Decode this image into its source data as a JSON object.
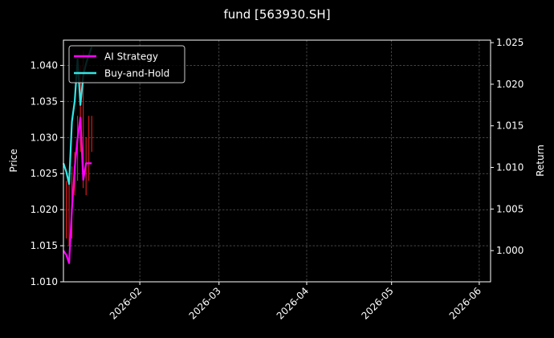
{
  "chart_data": {
    "type": "line",
    "title": "fund [563930.SH]",
    "ylabel_left": "Price",
    "ylabel_right": "Return",
    "ylim_left": [
      1.01,
      1.0435
    ],
    "ylim_right": [
      0.99625,
      1.0253
    ],
    "xlim": [
      "2026-01-05",
      "2026-06-05"
    ],
    "x_ticks": [
      "2026-02",
      "2026-03",
      "2026-04",
      "2026-05",
      "2026-06"
    ],
    "x_tick_dates": [
      "2026-02-01",
      "2026-03-01",
      "2026-04-01",
      "2026-05-01",
      "2026-06-01"
    ],
    "y_ticks_left": [
      "1.010",
      "1.015",
      "1.020",
      "1.025",
      "1.030",
      "1.035",
      "1.040"
    ],
    "y_ticks_right": [
      "1.000",
      "1.005",
      "1.010",
      "1.015",
      "1.020",
      "1.025"
    ],
    "grid": true,
    "legend_position": "top-left",
    "series": [
      {
        "name": "AI Strategy",
        "axis": "right",
        "color": "#ff00ff",
        "x": [
          "2026-01-05",
          "2026-01-06",
          "2026-01-07",
          "2026-01-08",
          "2026-01-09",
          "2026-01-10",
          "2026-01-11",
          "2026-01-12",
          "2026-01-13",
          "2026-01-14",
          "2026-01-15"
        ],
        "y": [
          1.0,
          0.9995,
          0.9985,
          1.005,
          1.01,
          1.0135,
          1.016,
          1.0085,
          1.0105,
          1.0105,
          1.0105
        ]
      },
      {
        "name": "Buy-and-Hold",
        "axis": "right",
        "color": "#33e6e6",
        "x": [
          "2026-01-05",
          "2026-01-06",
          "2026-01-07",
          "2026-01-08",
          "2026-01-09",
          "2026-01-10",
          "2026-01-11",
          "2026-01-12",
          "2026-01-13",
          "2026-01-14",
          "2026-01-15"
        ],
        "y": [
          1.0105,
          1.0095,
          1.008,
          1.0155,
          1.018,
          1.023,
          1.0175,
          1.021,
          1.0225,
          1.0235,
          1.0245
        ]
      }
    ],
    "price_bars": {
      "axis": "left",
      "color": "#ff2020",
      "x": [
        "2026-01-05",
        "2026-01-06",
        "2026-01-07",
        "2026-01-08",
        "2026-01-09",
        "2026-01-10",
        "2026-01-11",
        "2026-01-12",
        "2026-01-13",
        "2026-01-14",
        "2026-01-15"
      ],
      "low": [
        1.016,
        1.016,
        1.015,
        1.016,
        1.022,
        1.024,
        1.028,
        1.023,
        1.022,
        1.024,
        1.028
      ],
      "high": [
        1.022,
        1.024,
        1.024,
        1.026,
        1.028,
        1.033,
        1.04,
        1.042,
        1.03,
        1.033,
        1.033
      ]
    }
  }
}
